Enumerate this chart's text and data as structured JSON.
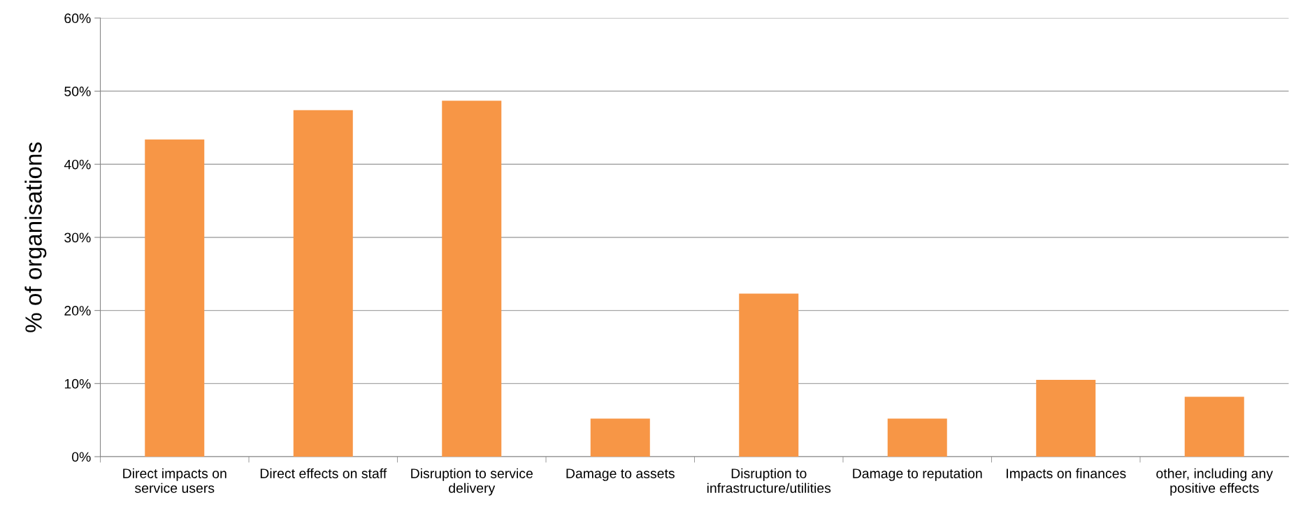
{
  "chart_data": {
    "type": "bar",
    "ylabel": "% of organisations",
    "categories": [
      "Direct impacts on service users",
      "Direct effects on staff",
      "Disruption to service delivery",
      "Damage to assets",
      "Disruption to infrastructure/utilities",
      "Damage to reputation",
      "Impacts on finances",
      "other, including any positive effects"
    ],
    "values": [
      43.4,
      47.4,
      48.7,
      5.2,
      22.3,
      5.2,
      10.5,
      8.2
    ],
    "color": "#f79646",
    "ylim": [
      0,
      60
    ],
    "yticks": [
      {
        "value": 0,
        "label": "0%"
      },
      {
        "value": 10,
        "label": "10%"
      },
      {
        "value": 20,
        "label": "20%"
      },
      {
        "value": 30,
        "label": "30%"
      },
      {
        "value": 40,
        "label": "40%"
      },
      {
        "value": 50,
        "label": "50%"
      },
      {
        "value": 60,
        "label": "60%"
      }
    ],
    "grid": "y",
    "legend": false
  }
}
